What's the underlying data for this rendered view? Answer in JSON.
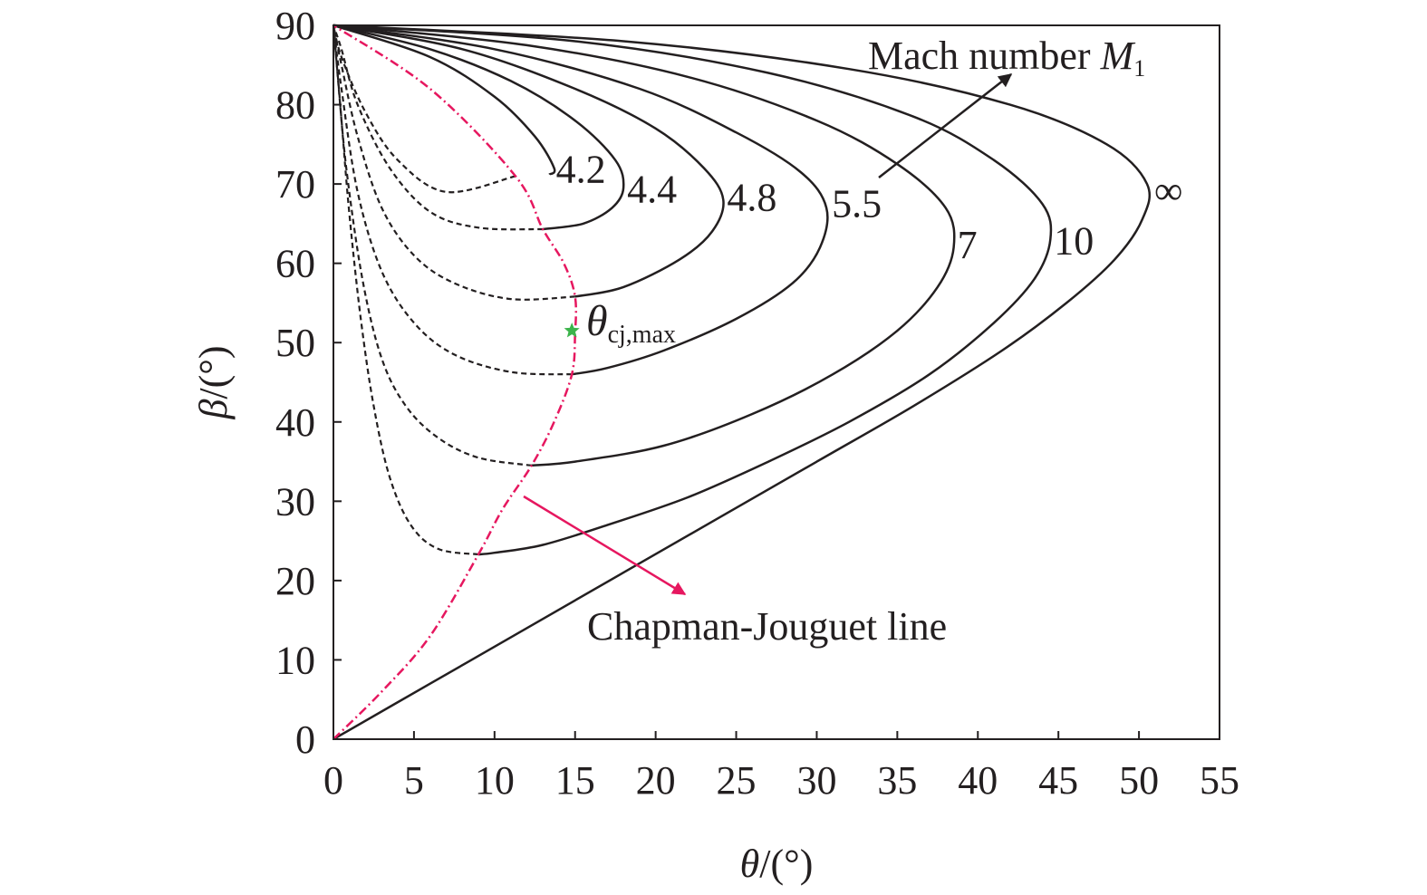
{
  "chart_data": {
    "type": "line",
    "xlabel": {
      "symbol": "θ",
      "unit": "/(°)"
    },
    "ylabel": {
      "symbol": "β",
      "unit": "/(°)"
    },
    "xlim": [
      0,
      55
    ],
    "ylim": [
      0,
      90
    ],
    "xticks": [
      0,
      5,
      10,
      15,
      20,
      25,
      30,
      35,
      40,
      45,
      50,
      55
    ],
    "yticks": [
      0,
      10,
      20,
      30,
      40,
      50,
      60,
      70,
      80,
      90
    ],
    "grid": false,
    "series": [
      {
        "name": "4.2",
        "color": "#231f20",
        "strong": [
          [
            0,
            90
          ],
          [
            6,
            86
          ],
          [
            10,
            81
          ],
          [
            12.5,
            76
          ],
          [
            13.7,
            72
          ],
          [
            13.4,
            71.2
          ]
        ],
        "weak": [
          [
            11.3,
            71
          ],
          [
            7,
            69
          ],
          [
            4,
            73
          ],
          [
            2,
            79
          ],
          [
            0.5,
            86
          ],
          [
            0,
            90
          ]
        ]
      },
      {
        "name": "4.4",
        "color": "#231f20",
        "strong": [
          [
            0,
            90
          ],
          [
            6,
            87
          ],
          [
            11,
            83
          ],
          [
            15,
            78
          ],
          [
            17.5,
            73
          ],
          [
            18,
            69.5
          ],
          [
            17.3,
            67
          ],
          [
            15.5,
            65
          ],
          [
            13,
            64.3
          ]
        ],
        "weak": [
          [
            13,
            64.3
          ],
          [
            9,
            64.5
          ],
          [
            6,
            66.5
          ],
          [
            3.5,
            72
          ],
          [
            1.5,
            80
          ],
          [
            0.5,
            87
          ],
          [
            0,
            90
          ]
        ]
      },
      {
        "name": "4.8",
        "color": "#231f20",
        "strong": [
          [
            0,
            90
          ],
          [
            8,
            87
          ],
          [
            15,
            82
          ],
          [
            20,
            77
          ],
          [
            23,
            72
          ],
          [
            24.2,
            68
          ],
          [
            23.5,
            64
          ],
          [
            21.5,
            60.5
          ],
          [
            18,
            57
          ],
          [
            15,
            55.8
          ]
        ],
        "weak": [
          [
            15,
            55.8
          ],
          [
            11,
            55.5
          ],
          [
            7.5,
            57.5
          ],
          [
            5,
            61
          ],
          [
            3,
            67
          ],
          [
            1.5,
            76
          ],
          [
            0.5,
            85
          ],
          [
            0,
            90
          ]
        ]
      },
      {
        "name": "5.5",
        "color": "#231f20",
        "strong": [
          [
            0,
            90
          ],
          [
            10,
            87
          ],
          [
            19,
            82
          ],
          [
            25,
            76.5
          ],
          [
            29,
            71.5
          ],
          [
            30.6,
            67
          ],
          [
            30.2,
            62
          ],
          [
            28.5,
            57.5
          ],
          [
            25,
            53
          ],
          [
            20.5,
            49
          ],
          [
            17,
            46.8
          ],
          [
            14.8,
            46
          ]
        ],
        "weak": [
          [
            14.8,
            46
          ],
          [
            11,
            46.3
          ],
          [
            7.5,
            48.5
          ],
          [
            5,
            52.5
          ],
          [
            3,
            59
          ],
          [
            1.5,
            69
          ],
          [
            0.5,
            82
          ],
          [
            0,
            90
          ]
        ]
      },
      {
        "name": "7",
        "color": "#231f20",
        "strong": [
          [
            0,
            90
          ],
          [
            12,
            87.5
          ],
          [
            22,
            83.5
          ],
          [
            30,
            78
          ],
          [
            35,
            72.5
          ],
          [
            38,
            67
          ],
          [
            38.5,
            62
          ],
          [
            37.5,
            57
          ],
          [
            35,
            51.5
          ],
          [
            31,
            46
          ],
          [
            26,
            41
          ],
          [
            20.5,
            37
          ],
          [
            15,
            35
          ],
          [
            12.3,
            34.5
          ]
        ],
        "weak": [
          [
            12.3,
            34.5
          ],
          [
            9,
            35.5
          ],
          [
            6.5,
            38
          ],
          [
            4.5,
            42
          ],
          [
            3,
            48
          ],
          [
            1.8,
            58
          ],
          [
            0.8,
            72
          ],
          [
            0.3,
            83
          ],
          [
            0,
            90
          ]
        ]
      },
      {
        "name": "10",
        "color": "#231f20",
        "strong": [
          [
            0,
            90
          ],
          [
            15,
            88
          ],
          [
            27,
            84
          ],
          [
            36,
            78.5
          ],
          [
            41,
            73
          ],
          [
            44,
            67.5
          ],
          [
            44.5,
            63
          ],
          [
            43.5,
            58
          ],
          [
            41,
            52.5
          ],
          [
            37,
            46
          ],
          [
            32,
            40
          ],
          [
            27,
            35
          ],
          [
            22,
            30.5
          ],
          [
            17,
            27
          ],
          [
            13,
            24.5
          ],
          [
            10,
            23.5
          ],
          [
            9,
            23.3
          ]
        ],
        "weak": [
          [
            9,
            23.3
          ],
          [
            6.5,
            24
          ],
          [
            4.8,
            27
          ],
          [
            3.5,
            33
          ],
          [
            2.5,
            42
          ],
          [
            1.7,
            53
          ],
          [
            1,
            66
          ],
          [
            0.5,
            78
          ],
          [
            0,
            90
          ]
        ]
      },
      {
        "name": "∞",
        "color": "#231f20",
        "strong": [
          [
            0,
            90
          ],
          [
            18,
            88
          ],
          [
            32,
            84.5
          ],
          [
            42,
            80
          ],
          [
            48,
            75
          ],
          [
            50.5,
            70
          ],
          [
            50.2,
            65.5
          ],
          [
            48.5,
            60.5
          ],
          [
            45.5,
            55
          ],
          [
            41.5,
            49
          ],
          [
            36,
            42
          ],
          [
            30,
            35
          ],
          [
            24,
            28
          ],
          [
            18,
            21
          ],
          [
            12,
            14
          ],
          [
            6,
            7
          ],
          [
            0,
            0
          ]
        ]
      }
    ],
    "cj_line": {
      "name": "Chapman-Jouguet line",
      "color": "#e6175f",
      "points": [
        [
          0,
          0
        ],
        [
          3,
          6
        ],
        [
          6,
          13
        ],
        [
          9,
          23.3
        ],
        [
          10.5,
          29
        ],
        [
          12.3,
          34.5
        ],
        [
          13.7,
          40
        ],
        [
          14.8,
          46
        ],
        [
          15,
          51
        ],
        [
          15,
          55.8
        ],
        [
          14.3,
          60
        ],
        [
          13,
          64.3
        ],
        [
          11.3,
          71
        ],
        [
          6,
          82
        ],
        [
          0,
          90
        ]
      ]
    },
    "cj_max_marker": {
      "x": 14.8,
      "y": 51.5,
      "color": "#3cb44b"
    },
    "annotations": {
      "mach_text": "Mach number ",
      "mach_symbol": "M",
      "mach_subscript": "1",
      "theta_symbol": "θ",
      "theta_subscript": "cj,max",
      "cj_label": "Chapman-Jouguet line"
    }
  }
}
